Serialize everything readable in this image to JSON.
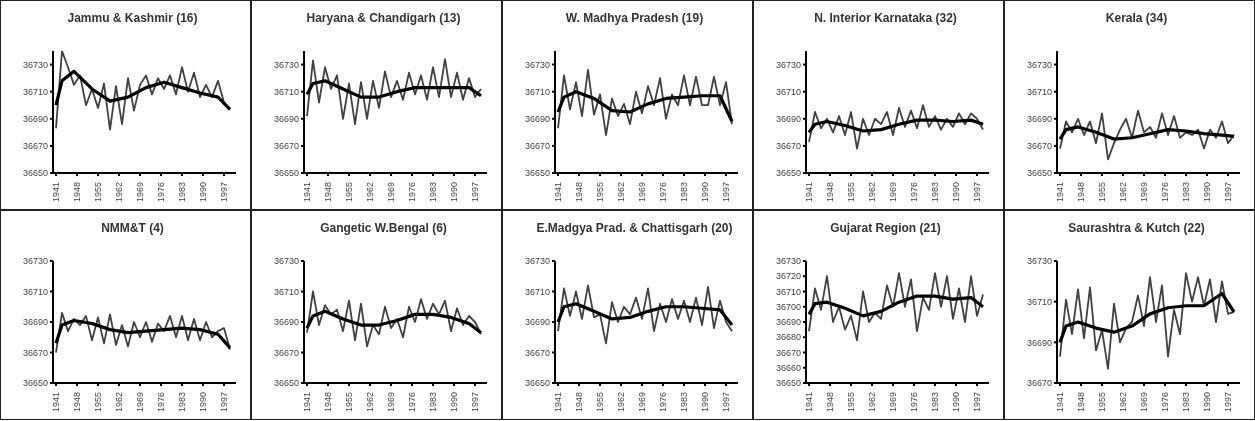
{
  "chart_data": [
    {
      "type": "line",
      "title": "Jammu & Kashmir (16)",
      "x": [
        1941,
        1943,
        1945,
        1947,
        1949,
        1951,
        1953,
        1955,
        1957,
        1959,
        1961,
        1963,
        1965,
        1967,
        1969,
        1971,
        1973,
        1975,
        1977,
        1979,
        1981,
        1983,
        1985,
        1987,
        1989,
        1991,
        1993,
        1995,
        1997,
        1999
      ],
      "xlim": [
        1940,
        2001
      ],
      "xticks": [
        1941,
        1948,
        1955,
        1962,
        1969,
        1976,
        1983,
        1990,
        1997
      ],
      "ylim": [
        36650,
        36740
      ],
      "yticks": [
        36650,
        36670,
        36690,
        36710,
        36730
      ],
      "marker": "none",
      "series": [
        {
          "color": "#404040",
          "values": [
            36683,
            36740,
            36728,
            36715,
            36722,
            36700,
            36712,
            36698,
            36716,
            36682,
            36714,
            36686,
            36720,
            36696,
            36715,
            36722,
            36708,
            36720,
            36712,
            36722,
            36708,
            36728,
            36710,
            36724,
            36706,
            36715,
            36706,
            36718,
            36702,
            36697
          ]
        },
        {
          "color": "#000000",
          "x": [
            1941,
            1943,
            1947,
            1953,
            1959,
            1965,
            1971,
            1977,
            1983,
            1989,
            1995,
            1999
          ],
          "values": [
            36700,
            36718,
            36725,
            36712,
            36703,
            36706,
            36713,
            36717,
            36713,
            36709,
            36706,
            36697
          ]
        }
      ]
    },
    {
      "type": "line",
      "title": "Haryana & Chandigarh (13)",
      "x": [
        1941,
        1943,
        1945,
        1947,
        1949,
        1951,
        1953,
        1955,
        1957,
        1959,
        1961,
        1963,
        1965,
        1967,
        1969,
        1971,
        1973,
        1975,
        1977,
        1979,
        1981,
        1983,
        1985,
        1987,
        1989,
        1991,
        1993,
        1995,
        1997,
        1999
      ],
      "xlim": [
        1940,
        2001
      ],
      "xticks": [
        1941,
        1948,
        1955,
        1962,
        1969,
        1976,
        1983,
        1990,
        1997
      ],
      "ylim": [
        36650,
        36740
      ],
      "yticks": [
        36650,
        36670,
        36690,
        36710,
        36730
      ],
      "marker": "none",
      "series": [
        {
          "color": "#404040",
          "values": [
            36692,
            36733,
            36702,
            36728,
            36712,
            36722,
            36690,
            36716,
            36686,
            36717,
            36690,
            36718,
            36698,
            36725,
            36706,
            36718,
            36704,
            36724,
            36708,
            36722,
            36704,
            36728,
            36706,
            36734,
            36706,
            36724,
            36704,
            36720,
            36706,
            36712
          ]
        },
        {
          "color": "#000000",
          "x": [
            1941,
            1943,
            1947,
            1953,
            1959,
            1965,
            1971,
            1977,
            1983,
            1989,
            1995,
            1999
          ],
          "values": [
            36708,
            36716,
            36718,
            36712,
            36706,
            36706,
            36710,
            36713,
            36713,
            36713,
            36713,
            36707
          ]
        }
      ]
    },
    {
      "type": "line",
      "title": "W. Madhya Pradesh (19)",
      "x": [
        1941,
        1943,
        1945,
        1947,
        1949,
        1951,
        1953,
        1955,
        1957,
        1959,
        1961,
        1963,
        1965,
        1967,
        1969,
        1971,
        1973,
        1975,
        1977,
        1979,
        1981,
        1983,
        1985,
        1987,
        1989,
        1991,
        1993,
        1995,
        1997,
        1999
      ],
      "xlim": [
        1940,
        2001
      ],
      "xticks": [
        1941,
        1948,
        1955,
        1962,
        1969,
        1976,
        1983,
        1990,
        1997
      ],
      "ylim": [
        36650,
        36740
      ],
      "yticks": [
        36650,
        36670,
        36690,
        36710,
        36730
      ],
      "marker": "none",
      "series": [
        {
          "color": "#404040",
          "values": [
            36683,
            36722,
            36697,
            36717,
            36692,
            36726,
            36693,
            36708,
            36678,
            36705,
            36692,
            36701,
            36686,
            36710,
            36694,
            36714,
            36700,
            36720,
            36690,
            36708,
            36700,
            36722,
            36700,
            36721,
            36700,
            36700,
            36721,
            36700,
            36717,
            36686
          ]
        },
        {
          "color": "#000000",
          "x": [
            1941,
            1943,
            1947,
            1953,
            1959,
            1965,
            1971,
            1977,
            1983,
            1989,
            1995,
            1999
          ],
          "values": [
            36695,
            36706,
            36710,
            36705,
            36696,
            36695,
            36701,
            36705,
            36706,
            36707,
            36707,
            36688
          ]
        }
      ]
    },
    {
      "type": "line",
      "title": "N. Interior Karnataka (32)",
      "x": [
        1941,
        1943,
        1945,
        1947,
        1949,
        1951,
        1953,
        1955,
        1957,
        1959,
        1961,
        1963,
        1965,
        1967,
        1969,
        1971,
        1973,
        1975,
        1977,
        1979,
        1981,
        1983,
        1985,
        1987,
        1989,
        1991,
        1993,
        1995,
        1997,
        1999
      ],
      "xlim": [
        1940,
        2001
      ],
      "xticks": [
        1941,
        1948,
        1955,
        1962,
        1969,
        1976,
        1983,
        1990,
        1997
      ],
      "ylim": [
        36650,
        36740
      ],
      "yticks": [
        36650,
        36670,
        36690,
        36710,
        36730
      ],
      "marker": "none",
      "series": [
        {
          "color": "#404040",
          "values": [
            36673,
            36695,
            36683,
            36690,
            36680,
            36692,
            36678,
            36695,
            36668,
            36690,
            36678,
            36690,
            36686,
            36695,
            36678,
            36698,
            36684,
            36696,
            36683,
            36700,
            36684,
            36692,
            36682,
            36690,
            36684,
            36694,
            36686,
            36694,
            36690,
            36682
          ]
        },
        {
          "color": "#000000",
          "x": [
            1941,
            1943,
            1947,
            1953,
            1959,
            1965,
            1971,
            1977,
            1983,
            1989,
            1995,
            1999
          ],
          "values": [
            36680,
            36686,
            36688,
            36685,
            36681,
            36682,
            36686,
            36689,
            36689,
            36688,
            36689,
            36686
          ]
        }
      ]
    },
    {
      "type": "line",
      "title": "Kerala (34)",
      "x": [
        1941,
        1943,
        1945,
        1947,
        1949,
        1951,
        1953,
        1955,
        1957,
        1959,
        1961,
        1963,
        1965,
        1967,
        1969,
        1971,
        1973,
        1975,
        1977,
        1979,
        1981,
        1983,
        1985,
        1987,
        1989,
        1991,
        1993,
        1995,
        1997,
        1999
      ],
      "xlim": [
        1940,
        2001
      ],
      "xticks": [
        1941,
        1948,
        1955,
        1962,
        1969,
        1976,
        1983,
        1990,
        1997
      ],
      "ylim": [
        36650,
        36740
      ],
      "yticks": [
        36650,
        36670,
        36690,
        36710,
        36730
      ],
      "marker": "none",
      "series": [
        {
          "color": "#404040",
          "values": [
            36668,
            36688,
            36680,
            36690,
            36678,
            36688,
            36672,
            36694,
            36660,
            36672,
            36682,
            36690,
            36676,
            36696,
            36680,
            36684,
            36676,
            36694,
            36678,
            36692,
            36676,
            36680,
            36678,
            36682,
            36668,
            36682,
            36676,
            36688,
            36672,
            36678
          ]
        },
        {
          "color": "#000000",
          "x": [
            1941,
            1943,
            1947,
            1953,
            1959,
            1965,
            1971,
            1977,
            1983,
            1989,
            1995,
            1999
          ],
          "values": [
            36675,
            36682,
            36684,
            36680,
            36675,
            36676,
            36679,
            36682,
            36681,
            36679,
            36678,
            36677
          ]
        }
      ]
    },
    {
      "type": "line",
      "title": "NMM&T (4)",
      "x": [
        1941,
        1943,
        1945,
        1947,
        1949,
        1951,
        1953,
        1955,
        1957,
        1959,
        1961,
        1963,
        1965,
        1967,
        1969,
        1971,
        1973,
        1975,
        1977,
        1979,
        1981,
        1983,
        1985,
        1987,
        1989,
        1991,
        1993,
        1995,
        1997,
        1999
      ],
      "xlim": [
        1940,
        2001
      ],
      "xticks": [
        1941,
        1948,
        1955,
        1962,
        1969,
        1976,
        1983,
        1990,
        1997
      ],
      "ylim": [
        36650,
        36730
      ],
      "yticks": [
        36650,
        36670,
        36690,
        36710,
        36730
      ],
      "marker": "none",
      "series": [
        {
          "color": "#404040",
          "values": [
            36670,
            36696,
            36684,
            36692,
            36688,
            36694,
            36678,
            36693,
            36676,
            36695,
            36675,
            36688,
            36674,
            36690,
            36680,
            36690,
            36677,
            36689,
            36684,
            36694,
            36680,
            36694,
            36678,
            36692,
            36678,
            36690,
            36680,
            36684,
            36686,
            36672
          ]
        },
        {
          "color": "#000000",
          "x": [
            1941,
            1943,
            1947,
            1953,
            1959,
            1965,
            1971,
            1977,
            1983,
            1989,
            1995,
            1999
          ],
          "values": [
            36676,
            36688,
            36691,
            36689,
            36685,
            36683,
            36684,
            36685,
            36686,
            36685,
            36682,
            36673
          ]
        }
      ]
    },
    {
      "type": "line",
      "title": "Gangetic W.Bengal (6)",
      "x": [
        1941,
        1943,
        1945,
        1947,
        1949,
        1951,
        1953,
        1955,
        1957,
        1959,
        1961,
        1963,
        1965,
        1967,
        1969,
        1971,
        1973,
        1975,
        1977,
        1979,
        1981,
        1983,
        1985,
        1987,
        1989,
        1991,
        1993,
        1995,
        1997,
        1999
      ],
      "xlim": [
        1940,
        2001
      ],
      "xticks": [
        1941,
        1948,
        1955,
        1962,
        1969,
        1976,
        1983,
        1990,
        1997
      ],
      "ylim": [
        36650,
        36730
      ],
      "yticks": [
        36650,
        36670,
        36690,
        36710,
        36730
      ],
      "marker": "none",
      "series": [
        {
          "color": "#404040",
          "values": [
            36683,
            36710,
            36688,
            36701,
            36695,
            36698,
            36684,
            36704,
            36678,
            36702,
            36674,
            36688,
            36682,
            36700,
            36686,
            36692,
            36680,
            36700,
            36690,
            36705,
            36692,
            36702,
            36695,
            36704,
            36684,
            36699,
            36688,
            36694,
            36690,
            36682
          ]
        },
        {
          "color": "#000000",
          "x": [
            1941,
            1943,
            1947,
            1953,
            1959,
            1965,
            1971,
            1977,
            1983,
            1989,
            1995,
            1999
          ],
          "values": [
            36686,
            36694,
            36697,
            36692,
            36688,
            36688,
            36691,
            36695,
            36695,
            36693,
            36689,
            36683
          ]
        }
      ]
    },
    {
      "type": "line",
      "title": "E.Madgya Prad. & Chattisgarh (20)",
      "x": [
        1941,
        1943,
        1945,
        1947,
        1949,
        1951,
        1953,
        1955,
        1957,
        1959,
        1961,
        1963,
        1965,
        1967,
        1969,
        1971,
        1973,
        1975,
        1977,
        1979,
        1981,
        1983,
        1985,
        1987,
        1989,
        1991,
        1993,
        1995,
        1997,
        1999
      ],
      "xlim": [
        1940,
        2001
      ],
      "xticks": [
        1941,
        1948,
        1955,
        1962,
        1969,
        1976,
        1983,
        1990,
        1997
      ],
      "ylim": [
        36650,
        36730
      ],
      "yticks": [
        36650,
        36670,
        36690,
        36710,
        36730
      ],
      "marker": "none",
      "series": [
        {
          "color": "#404040",
          "values": [
            36684,
            36712,
            36694,
            36710,
            36692,
            36714,
            36693,
            36695,
            36676,
            36703,
            36690,
            36700,
            36695,
            36706,
            36692,
            36712,
            36684,
            36702,
            36690,
            36705,
            36692,
            36704,
            36690,
            36706,
            36688,
            36713,
            36686,
            36704,
            36690,
            36684
          ]
        },
        {
          "color": "#000000",
          "x": [
            1941,
            1943,
            1947,
            1953,
            1959,
            1965,
            1971,
            1977,
            1983,
            1989,
            1995,
            1999
          ],
          "values": [
            36690,
            36700,
            36702,
            36697,
            36692,
            36693,
            36697,
            36700,
            36700,
            36699,
            36698,
            36688
          ]
        }
      ]
    },
    {
      "type": "line",
      "title": "Gujarat Region (21)",
      "x": [
        1941,
        1943,
        1945,
        1947,
        1949,
        1951,
        1953,
        1955,
        1957,
        1959,
        1961,
        1963,
        1965,
        1967,
        1969,
        1971,
        1973,
        1975,
        1977,
        1979,
        1981,
        1983,
        1985,
        1987,
        1989,
        1991,
        1993,
        1995,
        1997,
        1999
      ],
      "xlim": [
        1940,
        2001
      ],
      "xticks": [
        1941,
        1948,
        1955,
        1962,
        1969,
        1976,
        1983,
        1990,
        1997
      ],
      "ylim": [
        36650,
        36730
      ],
      "yticks": [
        36650,
        36660,
        36670,
        36680,
        36690,
        36700,
        36710,
        36720,
        36730
      ],
      "marker": "none",
      "series": [
        {
          "color": "#404040",
          "values": [
            36684,
            36712,
            36698,
            36720,
            36690,
            36700,
            36685,
            36694,
            36678,
            36710,
            36690,
            36696,
            36692,
            36714,
            36700,
            36722,
            36700,
            36718,
            36684,
            36706,
            36698,
            36722,
            36700,
            36720,
            36692,
            36712,
            36690,
            36720,
            36694,
            36708
          ]
        },
        {
          "color": "#000000",
          "x": [
            1941,
            1943,
            1947,
            1953,
            1959,
            1965,
            1971,
            1977,
            1983,
            1989,
            1995,
            1999
          ],
          "values": [
            36695,
            36702,
            36703,
            36699,
            36694,
            36697,
            36703,
            36707,
            36707,
            36705,
            36706,
            36700
          ]
        }
      ]
    },
    {
      "type": "line",
      "title": "Saurashtra & Kutch (22)",
      "x": [
        1941,
        1943,
        1945,
        1947,
        1949,
        1951,
        1953,
        1955,
        1957,
        1959,
        1961,
        1963,
        1965,
        1967,
        1969,
        1971,
        1973,
        1975,
        1977,
        1979,
        1981,
        1983,
        1985,
        1987,
        1989,
        1991,
        1993,
        1995,
        1997,
        1999
      ],
      "xlim": [
        1940,
        2001
      ],
      "xticks": [
        1941,
        1948,
        1955,
        1962,
        1969,
        1976,
        1983,
        1990,
        1997
      ],
      "ylim": [
        36670,
        36730
      ],
      "yticks": [
        36670,
        36690,
        36710,
        36730
      ],
      "marker": "none",
      "series": [
        {
          "color": "#404040",
          "values": [
            36683,
            36711,
            36694,
            36716,
            36692,
            36717,
            36686,
            36696,
            36677,
            36709,
            36690,
            36697,
            36700,
            36713,
            36698,
            36722,
            36700,
            36718,
            36683,
            36706,
            36694,
            36724,
            36710,
            36722,
            36708,
            36721,
            36700,
            36720,
            36704,
            36705
          ]
        },
        {
          "color": "#000000",
          "x": [
            1941,
            1943,
            1947,
            1953,
            1959,
            1965,
            1971,
            1977,
            1983,
            1989,
            1995,
            1999
          ],
          "values": [
            36690,
            36698,
            36700,
            36697,
            36695,
            36698,
            36704,
            36707,
            36708,
            36708,
            36714,
            36705
          ]
        }
      ]
    }
  ]
}
